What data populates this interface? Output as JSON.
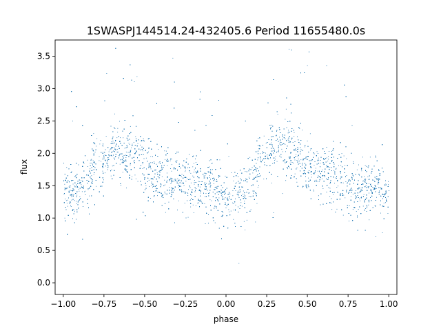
{
  "chart_data": {
    "type": "scatter",
    "title": "1SWASPJ144514.24-432405.6 Period 11655480.0s",
    "xlabel": "phase",
    "ylabel": "flux",
    "xlim": [
      -1.05,
      1.05
    ],
    "ylim": [
      -0.18,
      3.75
    ],
    "grid": false,
    "legend": "none",
    "marker_color": "#1f77b4",
    "x_ticks": [
      {
        "value": -1.0,
        "label": "−1.00"
      },
      {
        "value": -0.75,
        "label": "−0.75"
      },
      {
        "value": -0.5,
        "label": "−0.50"
      },
      {
        "value": -0.25,
        "label": "−0.25"
      },
      {
        "value": 0.0,
        "label": "0.00"
      },
      {
        "value": 0.25,
        "label": "0.25"
      },
      {
        "value": 0.5,
        "label": "0.50"
      },
      {
        "value": 0.75,
        "label": "0.75"
      },
      {
        "value": 1.0,
        "label": "1.00"
      }
    ],
    "y_ticks": [
      {
        "value": 0.0,
        "label": "0.0"
      },
      {
        "value": 0.5,
        "label": "0.5"
      },
      {
        "value": 1.0,
        "label": "1.0"
      },
      {
        "value": 1.5,
        "label": "1.5"
      },
      {
        "value": 2.0,
        "label": "2.0"
      },
      {
        "value": 2.5,
        "label": "2.5"
      },
      {
        "value": 3.0,
        "label": "3.0"
      },
      {
        "value": 3.5,
        "label": "3.5"
      }
    ],
    "series": [
      {
        "x": [
          -1.0,
          -0.975,
          -0.95,
          -0.925,
          -0.9,
          -0.875,
          -0.85,
          -0.825,
          -0.8,
          -0.775,
          -0.75,
          -0.725,
          -0.7,
          -0.675,
          -0.65,
          -0.625,
          -0.6,
          -0.575,
          -0.55,
          -0.525,
          -0.5,
          -0.475,
          -0.45,
          -0.425,
          -0.4,
          -0.375,
          -0.35,
          -0.325,
          -0.3,
          -0.275,
          -0.25,
          -0.225,
          -0.2,
          -0.175,
          -0.15,
          -0.125,
          -0.1,
          -0.075,
          -0.05,
          -0.025,
          0.0,
          0.025,
          0.05,
          0.075,
          0.1,
          0.125,
          0.15,
          0.175,
          0.2,
          0.225,
          0.25,
          0.275,
          0.3,
          0.325,
          0.35,
          0.375,
          0.4,
          0.425,
          0.45,
          0.475,
          0.5,
          0.525,
          0.55,
          0.575,
          0.6,
          0.625,
          0.65,
          0.675,
          0.7,
          0.725,
          0.75,
          0.775,
          0.8,
          0.825,
          0.85,
          0.875,
          0.9,
          0.925,
          0.95,
          0.975,
          1.0
        ],
        "y": [
          1.45,
          1.4,
          1.35,
          1.45,
          1.5,
          1.45,
          1.5,
          1.7,
          1.9,
          1.85,
          1.85,
          1.95,
          2.0,
          2.1,
          2.0,
          1.95,
          2.0,
          2.05,
          2.05,
          2.0,
          1.8,
          1.75,
          1.7,
          1.7,
          1.65,
          1.6,
          1.6,
          1.55,
          1.6,
          1.55,
          1.5,
          1.5,
          1.55,
          1.5,
          1.55,
          1.5,
          1.55,
          1.5,
          1.4,
          1.3,
          1.3,
          1.35,
          1.4,
          1.35,
          1.4,
          1.45,
          1.5,
          1.6,
          1.9,
          2.0,
          2.05,
          2.1,
          2.15,
          2.2,
          2.1,
          2.05,
          2.05,
          2.05,
          2.0,
          1.85,
          1.85,
          1.8,
          1.75,
          1.75,
          1.7,
          1.7,
          1.65,
          1.65,
          1.6,
          1.55,
          1.5,
          1.55,
          1.5,
          1.5,
          1.45,
          1.45,
          1.5,
          1.5,
          1.5,
          1.45,
          1.45
        ]
      }
    ]
  }
}
